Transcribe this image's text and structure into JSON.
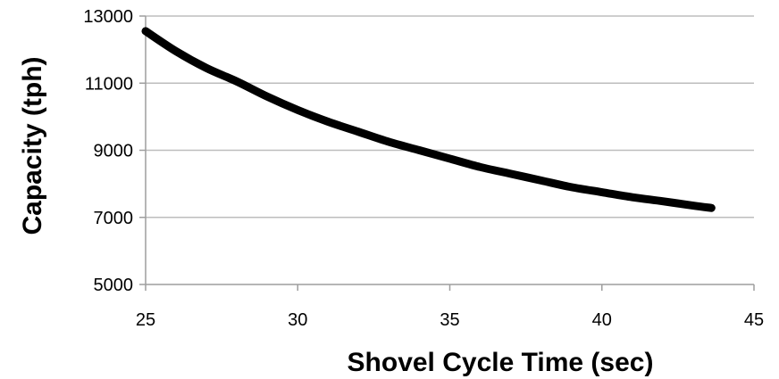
{
  "chart_data": {
    "type": "line",
    "title": "",
    "xlabel": "Shovel Cycle  Time (sec)",
    "ylabel": "Capacity (tph)",
    "xlim": [
      25,
      45
    ],
    "ylim": [
      5000,
      13000
    ],
    "x_ticks": [
      25,
      30,
      35,
      40,
      45
    ],
    "y_ticks": [
      5000,
      7000,
      9000,
      11000,
      13000
    ],
    "grid": "horizontal",
    "legend": "none",
    "series": [
      {
        "color": "#000000",
        "x": [
          25,
          26,
          27,
          28,
          29,
          30,
          31,
          32,
          33,
          34,
          35,
          36,
          37,
          38,
          39,
          40,
          41,
          42,
          43,
          43.6
        ],
        "y": [
          12550,
          11950,
          11450,
          11050,
          10600,
          10200,
          9850,
          9550,
          9250,
          9000,
          8750,
          8500,
          8300,
          8100,
          7900,
          7750,
          7600,
          7480,
          7350,
          7280
        ]
      }
    ]
  }
}
